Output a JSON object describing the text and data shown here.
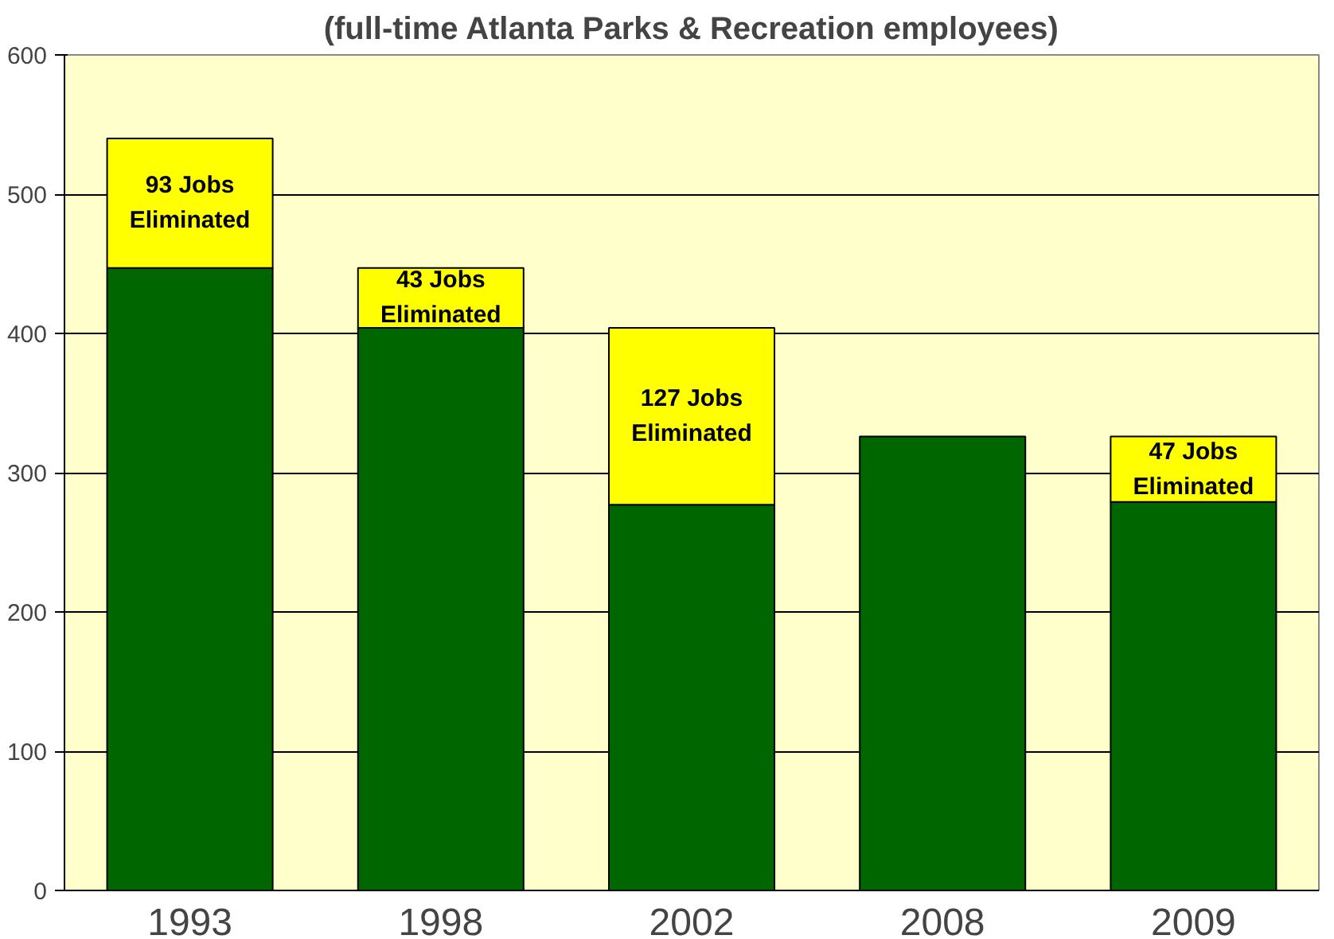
{
  "chart_data": {
    "type": "bar",
    "title": "(full-time Atlanta Parks & Recreation employees)",
    "categories": [
      "1993",
      "1998",
      "2002",
      "2008",
      "2009"
    ],
    "stacked": true,
    "series": [
      {
        "color": "#006600",
        "values": [
          447,
          404,
          277,
          326,
          279
        ]
      },
      {
        "color": "#ffff00",
        "values": [
          93,
          43,
          127,
          null,
          47
        ],
        "value_labels": [
          "93 Jobs\nEliminated",
          "43 Jobs\nEliminated",
          "127 Jobs\nEliminated",
          null,
          "47 Jobs\nEliminated"
        ]
      }
    ],
    "ylim": [
      0,
      600
    ],
    "yticks": [
      0,
      100,
      200,
      300,
      400,
      500,
      600
    ],
    "grid": "y"
  }
}
